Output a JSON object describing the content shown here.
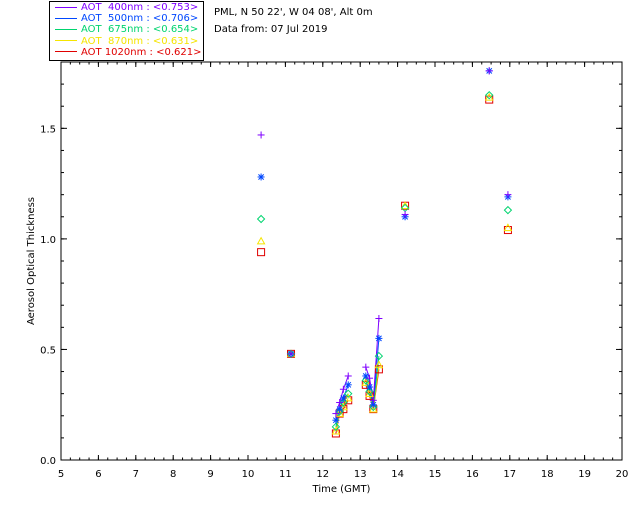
{
  "header": {
    "site_line": "PML, N 50 22', W 04 08', Alt 0m",
    "date_line": "Data from: 07 Jul 2019"
  },
  "legend": [
    {
      "label": "AOT  400nm : <0.753>",
      "color": "#7f00ff"
    },
    {
      "label": "AOT  500nm : <0.706>",
      "color": "#0047ff"
    },
    {
      "label": "AOT  675nm : <0.654>",
      "color": "#00d46f"
    },
    {
      "label": "AOT  870nm : <0.631>",
      "color": "#f5e500"
    },
    {
      "label": "AOT 1020nm : <0.621>",
      "color": "#e00000"
    }
  ],
  "chart_data": {
    "type": "scatter",
    "title": "",
    "xlabel": "Time (GMT)",
    "ylabel": "Aerosol Optical Thickness",
    "xlim": [
      5,
      20
    ],
    "ylim": [
      0,
      1.8
    ],
    "xticks": [
      5,
      6,
      7,
      8,
      9,
      10,
      11,
      12,
      13,
      14,
      15,
      16,
      17,
      18,
      19,
      20
    ],
    "yticks": [
      0.0,
      0.5,
      1.0,
      1.5
    ],
    "ytick_labels": [
      "0.0",
      "0.5",
      "1.0",
      "1.5"
    ],
    "grid": false,
    "x": [
      10.35,
      11.15,
      12.35,
      12.45,
      12.55,
      12.68,
      13.15,
      13.25,
      13.35,
      13.5,
      14.2,
      16.45,
      16.95
    ],
    "series": [
      {
        "name": "AOT 400nm",
        "marker": "plus",
        "color": "#7f00ff",
        "values": [
          1.47,
          0.48,
          0.21,
          0.26,
          0.32,
          0.38,
          0.42,
          0.37,
          0.27,
          0.64,
          1.11,
          1.76,
          1.2
        ]
      },
      {
        "name": "AOT 500nm",
        "marker": "star",
        "color": "#0047ff",
        "values": [
          1.28,
          0.48,
          0.18,
          0.23,
          0.28,
          0.34,
          0.38,
          0.33,
          0.25,
          0.55,
          1.1,
          1.76,
          1.19
        ]
      },
      {
        "name": "AOT 675nm",
        "marker": "diamond",
        "color": "#00d46f",
        "values": [
          1.09,
          0.48,
          0.15,
          0.22,
          0.26,
          0.3,
          0.36,
          0.31,
          0.24,
          0.47,
          1.14,
          1.65,
          1.13
        ]
      },
      {
        "name": "AOT 870nm",
        "marker": "triangle",
        "color": "#f5e500",
        "values": [
          0.99,
          0.48,
          0.13,
          0.21,
          0.24,
          0.28,
          0.35,
          0.3,
          0.23,
          0.43,
          1.15,
          1.64,
          1.05
        ]
      },
      {
        "name": "AOT 1020nm",
        "marker": "square",
        "color": "#e00000",
        "values": [
          0.94,
          0.48,
          0.12,
          0.21,
          0.23,
          0.27,
          0.34,
          0.29,
          0.23,
          0.41,
          1.15,
          1.63,
          1.04
        ]
      }
    ]
  }
}
